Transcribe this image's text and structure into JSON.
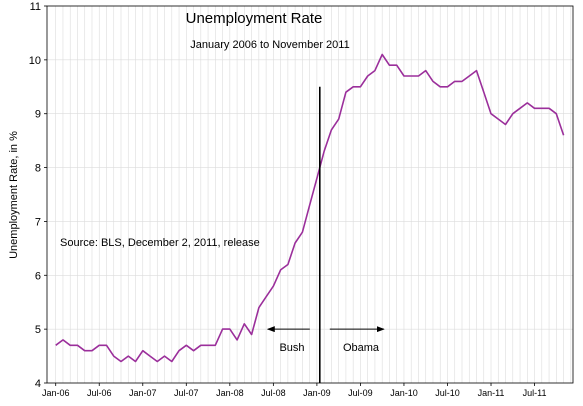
{
  "chart_data": {
    "type": "line",
    "title": "Unemployment Rate",
    "subtitle": "January 2006 to November 2011",
    "ylabel": "Unemployment Rate, in %",
    "xlabel": "",
    "ylim": [
      4,
      11
    ],
    "yticks": [
      4,
      5,
      6,
      7,
      8,
      9,
      10,
      11
    ],
    "grid": true,
    "xticks": [
      {
        "label": "Jan-06",
        "index": 0
      },
      {
        "label": "Jul-06",
        "index": 6
      },
      {
        "label": "Jan-07",
        "index": 12
      },
      {
        "label": "Jul-07",
        "index": 18
      },
      {
        "label": "Jan-08",
        "index": 24
      },
      {
        "label": "Jul-08",
        "index": 30
      },
      {
        "label": "Jan-09",
        "index": 36
      },
      {
        "label": "Jul-09",
        "index": 42
      },
      {
        "label": "Jan-10",
        "index": 48
      },
      {
        "label": "Jul-10",
        "index": 54
      },
      {
        "label": "Jan-11",
        "index": 60
      },
      {
        "label": "Jul-11",
        "index": 66
      }
    ],
    "series": [
      {
        "color": "#9b2f9b",
        "start": "Jan-06",
        "values": [
          4.7,
          4.8,
          4.7,
          4.7,
          4.6,
          4.6,
          4.7,
          4.7,
          4.5,
          4.4,
          4.5,
          4.4,
          4.6,
          4.5,
          4.4,
          4.5,
          4.4,
          4.6,
          4.7,
          4.6,
          4.7,
          4.7,
          4.7,
          5.0,
          5.0,
          4.8,
          5.1,
          4.9,
          5.4,
          5.6,
          5.8,
          6.1,
          6.2,
          6.6,
          6.8,
          7.3,
          7.8,
          8.3,
          8.7,
          8.9,
          9.4,
          9.5,
          9.5,
          9.7,
          9.8,
          10.1,
          9.9,
          9.9,
          9.7,
          9.7,
          9.7,
          9.8,
          9.6,
          9.5,
          9.5,
          9.6,
          9.6,
          9.7,
          9.8,
          9.4,
          9.0,
          8.9,
          8.8,
          9.0,
          9.1,
          9.2,
          9.1,
          9.1,
          9.1,
          9.0,
          8.6
        ]
      }
    ],
    "annotations": {
      "source": "Source:  BLS, December 2, 2011, release",
      "divider_index": 36.4,
      "divider_top_value": 9.5,
      "left_label": "Bush",
      "right_label": "Obama"
    }
  }
}
